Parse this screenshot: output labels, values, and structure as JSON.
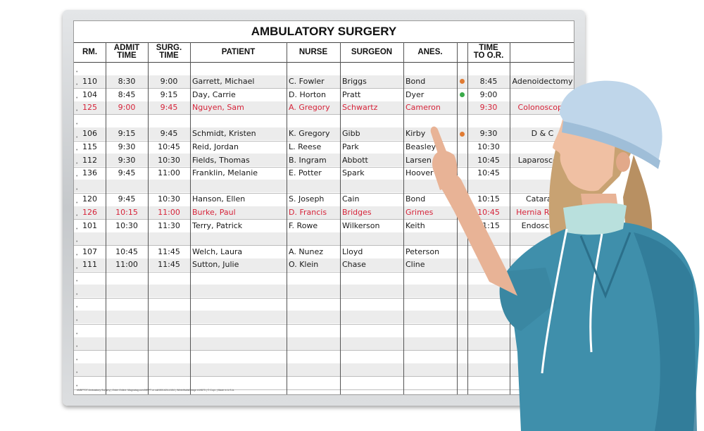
{
  "board": {
    "title": "AMBULATORY SURGERY",
    "columns": [
      "RM.",
      "ADMIT\nTIME",
      "SURG.\nTIME",
      "PATIENT",
      "NURSE",
      "SURGEON",
      "ANES.",
      "",
      "TIME\nTO O.R.",
      ""
    ],
    "footer": "#MBPT0T Ambulatory Surgery | Order Online: Magnatag.com/MBPT or call 800-624-4154 | WhiteWallsDesign #19873 | © Copr. | Made in U.S.A."
  },
  "rows": [
    null,
    {
      "rm": "110",
      "admit": "8:30",
      "surg": "9:00",
      "patient": "Garrett, Michael",
      "nurse": "C. Fowler",
      "surgeon": "Briggs",
      "anes": "Bond",
      "dot": "#e07b33",
      "time_or": "8:45",
      "procedure": "Adenoidectomy",
      "red": false
    },
    {
      "rm": "104",
      "admit": "8:45",
      "surg": "9:15",
      "patient": "Day, Carrie",
      "nurse": "D. Horton",
      "surgeon": "Pratt",
      "anes": "Dyer",
      "dot": "#3aaa4a",
      "time_or": "9:00",
      "procedure": "",
      "red": false
    },
    {
      "rm": "125",
      "admit": "9:00",
      "surg": "9:45",
      "patient": "Nguyen, Sam",
      "nurse": "A. Gregory",
      "surgeon": "Schwartz",
      "anes": "Cameron",
      "dot": "",
      "time_or": "9:30",
      "procedure": "Colonoscopy",
      "red": true
    },
    null,
    {
      "rm": "106",
      "admit": "9:15",
      "surg": "9:45",
      "patient": "Schmidt, Kristen",
      "nurse": "K. Gregory",
      "surgeon": "Gibb",
      "anes": "Kirby",
      "dot": "#e07b33",
      "time_or": "9:30",
      "procedure": "D & C",
      "red": false
    },
    {
      "rm": "115",
      "admit": "9:30",
      "surg": "10:45",
      "patient": "Reid, Jordan",
      "nurse": "L. Reese",
      "surgeon": "Park",
      "anes": "Beasley",
      "dot": "",
      "time_or": "10:30",
      "procedure": "",
      "red": false
    },
    {
      "rm": "112",
      "admit": "9:30",
      "surg": "10:30",
      "patient": "Fields, Thomas",
      "nurse": "B. Ingram",
      "surgeon": "Abbott",
      "anes": "Larsen",
      "dot": "",
      "time_or": "10:45",
      "procedure": "Laparoscopy",
      "red": false
    },
    {
      "rm": "136",
      "admit": "9:45",
      "surg": "11:00",
      "patient": "Franklin, Melanie",
      "nurse": "E. Potter",
      "surgeon": "Spark",
      "anes": "Hoover",
      "dot": "",
      "time_or": "10:45",
      "procedure": "",
      "red": false
    },
    null,
    {
      "rm": "120",
      "admit": "9:45",
      "surg": "10:30",
      "patient": "Hanson, Ellen",
      "nurse": "S. Joseph",
      "surgeon": "Cain",
      "anes": "Bond",
      "dot": "",
      "time_or": "10:15",
      "procedure": "Cataract",
      "red": false
    },
    {
      "rm": "126",
      "admit": "10:15",
      "surg": "11:00",
      "patient": "Burke, Paul",
      "nurse": "D. Francis",
      "surgeon": "Bridges",
      "anes": "Grimes",
      "dot": "",
      "time_or": "10:45",
      "procedure": "Hernia Repair",
      "red": true
    },
    {
      "rm": "101",
      "admit": "10:30",
      "surg": "11:30",
      "patient": "Terry, Patrick",
      "nurse": "F. Rowe",
      "surgeon": "Wilkerson",
      "anes": "Keith",
      "dot": "",
      "time_or": "11:15",
      "procedure": "Endoscopy",
      "red": false
    },
    null,
    {
      "rm": "107",
      "admit": "10:45",
      "surg": "11:45",
      "patient": "Welch, Laura",
      "nurse": "A. Nunez",
      "surgeon": "Lloyd",
      "anes": "Peterson",
      "dot": "",
      "time_or": "",
      "procedure": "",
      "red": false
    },
    {
      "rm": "111",
      "admit": "11:00",
      "surg": "11:45",
      "patient": "Sutton, Julie",
      "nurse": "O. Klein",
      "surgeon": "Chase",
      "anes": "Cline",
      "dot": "",
      "time_or": "",
      "procedure": "",
      "red": false
    }
  ],
  "colors": {
    "red_text": "#d6243a",
    "row_shade": "#ececec",
    "scrubs": "#3f8fab",
    "cap": "#bfd6ea"
  }
}
